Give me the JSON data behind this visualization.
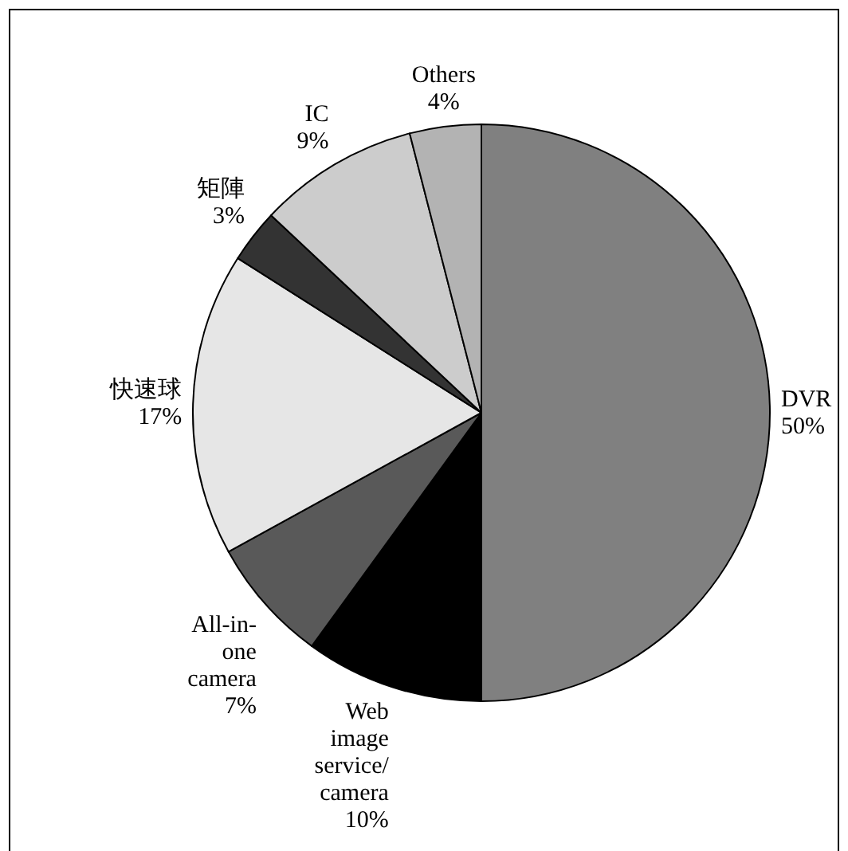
{
  "chart_data": {
    "type": "pie",
    "categories": [
      "DVR",
      "Web image service/camera",
      "All-in-one camera",
      "快速球",
      "矩陣",
      "IC",
      "Others"
    ],
    "values": [
      50,
      10,
      7,
      17,
      3,
      9,
      4
    ],
    "value_labels": [
      "50%",
      "10%",
      "7%",
      "17%",
      "3%",
      "9%",
      "4%"
    ],
    "colors": [
      "#808080",
      "#000000",
      "#595959",
      "#e6e6e6",
      "#333333",
      "#cccccc",
      "#b3b3b3"
    ]
  }
}
